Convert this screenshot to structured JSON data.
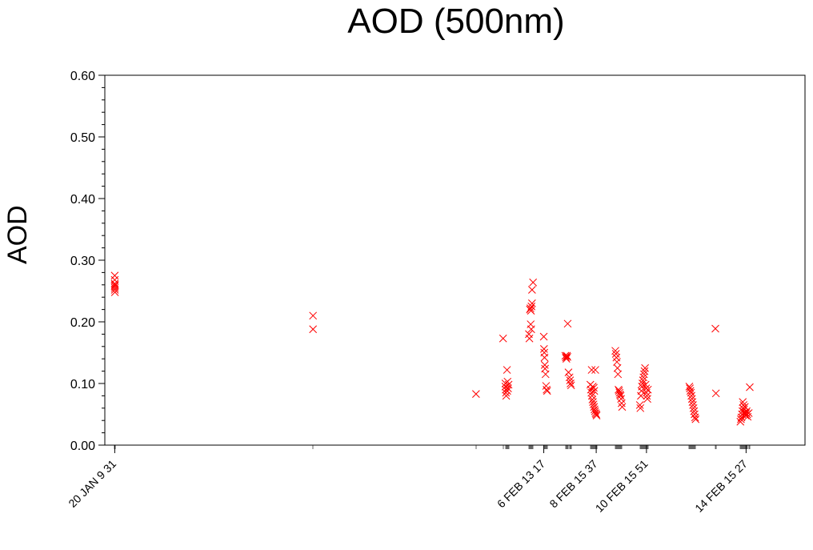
{
  "chart_data": {
    "type": "scatter",
    "title": "AOD (500nm)",
    "xlabel": "",
    "ylabel": "AOD",
    "ylim": [
      0,
      0.6
    ],
    "xlim_days": [
      "2020-01-20",
      "2020-02-17"
    ],
    "y_ticks": [
      "0.00",
      "0.10",
      "0.20",
      "0.30",
      "0.40",
      "0.50",
      "0.60"
    ],
    "x_ticks": [
      {
        "time": "01-20 09:31",
        "label": "20 JAN 9 31"
      },
      {
        "time": "02-06 13:17",
        "label": "6 FEB 13 17"
      },
      {
        "time": "02-08 15:37",
        "label": "8 FEB 15 37"
      },
      {
        "time": "02-10 15:51",
        "label": "10 FEB 15 51"
      },
      {
        "time": "02-14 15:27",
        "label": "14 FEB 15 27"
      }
    ],
    "marker": "x",
    "marker_color": "#ff0000",
    "series": [
      {
        "points": [
          [
            "01-20 09:31",
            0.275
          ],
          [
            "01-20 09:31",
            0.268
          ],
          [
            "01-20 09:31",
            0.262
          ],
          [
            "01-20 09:31",
            0.258
          ],
          [
            "01-20 09:35",
            0.255
          ],
          [
            "01-20 09:38",
            0.252
          ],
          [
            "01-20 09:42",
            0.248
          ],
          [
            "01-20 09:45",
            0.26
          ],
          [
            "01-28 07:49",
            0.21
          ],
          [
            "01-28 07:49",
            0.188
          ],
          [
            "02-03 20:15",
            0.083
          ],
          [
            "02-04 22:15",
            0.173
          ],
          [
            "02-05 00:30",
            0.1
          ],
          [
            "02-05 00:30",
            0.095
          ],
          [
            "02-05 00:45",
            0.09
          ],
          [
            "02-05 01:00",
            0.085
          ],
          [
            "02-05 01:15",
            0.08
          ],
          [
            "02-05 02:00",
            0.122
          ],
          [
            "02-05 02:30",
            0.103
          ],
          [
            "02-05 03:00",
            0.092
          ],
          [
            "02-05 03:30",
            0.098
          ],
          [
            "02-05 02:15",
            0.088
          ],
          [
            "02-06 00:00",
            0.22
          ],
          [
            "02-06 00:30",
            0.222
          ],
          [
            "02-06 01:00",
            0.218
          ],
          [
            "02-06 01:30",
            0.225
          ],
          [
            "02-06 02:00",
            0.252
          ],
          [
            "02-06 03:00",
            0.264
          ],
          [
            "02-06 02:00",
            0.23
          ],
          [
            "02-06 00:45",
            0.196
          ],
          [
            "02-06 01:15",
            0.188
          ],
          [
            "02-05 23:00",
            0.18
          ],
          [
            "02-05 23:30",
            0.173
          ],
          [
            "02-06 13:17",
            0.176
          ],
          [
            "02-06 13:30",
            0.156
          ],
          [
            "02-06 13:45",
            0.15
          ],
          [
            "02-06 14:00",
            0.142
          ],
          [
            "02-06 14:15",
            0.13
          ],
          [
            "02-06 14:30",
            0.124
          ],
          [
            "02-06 15:00",
            0.115
          ],
          [
            "02-06 15:30",
            0.096
          ],
          [
            "02-06 16:00",
            0.09
          ],
          [
            "02-06 16:30",
            0.088
          ],
          [
            "02-07 10:00",
            0.145
          ],
          [
            "02-07 10:30",
            0.142
          ],
          [
            "02-07 11:00",
            0.14
          ],
          [
            "02-07 11:30",
            0.145
          ],
          [
            "02-07 12:00",
            0.143
          ],
          [
            "02-07 12:15",
            0.197
          ],
          [
            "02-07 13:00",
            0.118
          ],
          [
            "02-07 14:00",
            0.11
          ],
          [
            "02-07 15:00",
            0.1
          ],
          [
            "02-07 15:30",
            0.097
          ],
          [
            "02-07 14:30",
            0.105
          ],
          [
            "02-08 10:00",
            0.098
          ],
          [
            "02-08 10:30",
            0.09
          ],
          [
            "02-08 11:00",
            0.085
          ],
          [
            "02-08 11:30",
            0.08
          ],
          [
            "02-08 12:00",
            0.074
          ],
          [
            "02-08 12:30",
            0.07
          ],
          [
            "02-08 13:00",
            0.066
          ],
          [
            "02-08 13:30",
            0.062
          ],
          [
            "02-08 14:00",
            0.058
          ],
          [
            "02-08 14:30",
            0.055
          ],
          [
            "02-08 15:00",
            0.052
          ],
          [
            "02-08 15:37",
            0.05
          ],
          [
            "02-08 16:00",
            0.048
          ],
          [
            "02-08 11:15",
            0.122
          ],
          [
            "02-08 14:45",
            0.122
          ],
          [
            "02-08 12:15",
            0.095
          ],
          [
            "02-08 13:15",
            0.093
          ],
          [
            "02-08 13:45",
            0.088
          ],
          [
            "02-09 10:00",
            0.153
          ],
          [
            "02-09 10:30",
            0.148
          ],
          [
            "02-09 11:00",
            0.142
          ],
          [
            "02-09 11:30",
            0.135
          ],
          [
            "02-09 12:00",
            0.125
          ],
          [
            "02-09 12:30",
            0.115
          ],
          [
            "02-09 13:00",
            0.09
          ],
          [
            "02-09 13:30",
            0.088
          ],
          [
            "02-09 14:00",
            0.085
          ],
          [
            "02-09 14:30",
            0.082
          ],
          [
            "02-09 15:00",
            0.08
          ],
          [
            "02-09 15:30",
            0.075
          ],
          [
            "02-09 16:00",
            0.068
          ],
          [
            "02-09 16:30",
            0.062
          ],
          [
            "02-10 09:30",
            0.065
          ],
          [
            "02-10 10:00",
            0.06
          ],
          [
            "02-10 10:30",
            0.08
          ],
          [
            "02-10 11:00",
            0.088
          ],
          [
            "02-10 11:30",
            0.095
          ],
          [
            "02-10 12:00",
            0.1
          ],
          [
            "02-10 12:30",
            0.105
          ],
          [
            "02-10 13:00",
            0.11
          ],
          [
            "02-10 13:30",
            0.115
          ],
          [
            "02-10 14:00",
            0.12
          ],
          [
            "02-10 14:30",
            0.125
          ],
          [
            "02-10 15:00",
            0.098
          ],
          [
            "02-10 15:30",
            0.092
          ],
          [
            "02-10 15:51",
            0.085
          ],
          [
            "02-10 16:15",
            0.08
          ],
          [
            "02-10 16:45",
            0.075
          ],
          [
            "02-10 17:15",
            0.09
          ],
          [
            "02-12 09:00",
            0.095
          ],
          [
            "02-12 09:30",
            0.092
          ],
          [
            "02-12 10:00",
            0.088
          ],
          [
            "02-12 10:30",
            0.085
          ],
          [
            "02-12 11:00",
            0.08
          ],
          [
            "02-12 11:30",
            0.075
          ],
          [
            "02-12 12:00",
            0.07
          ],
          [
            "02-12 12:30",
            0.065
          ],
          [
            "02-12 13:00",
            0.06
          ],
          [
            "02-12 13:30",
            0.055
          ],
          [
            "02-12 14:00",
            0.05
          ],
          [
            "02-12 14:30",
            0.045
          ],
          [
            "02-12 15:00",
            0.042
          ],
          [
            "02-13 10:00",
            0.189
          ],
          [
            "02-13 10:30",
            0.084
          ],
          [
            "02-14 10:00",
            0.038
          ],
          [
            "02-14 10:30",
            0.042
          ],
          [
            "02-14 11:00",
            0.045
          ],
          [
            "02-14 11:30",
            0.05
          ],
          [
            "02-14 12:00",
            0.055
          ],
          [
            "02-14 12:30",
            0.06
          ],
          [
            "02-14 13:00",
            0.065
          ],
          [
            "02-14 13:30",
            0.058
          ],
          [
            "02-14 14:00",
            0.053
          ],
          [
            "02-14 14:30",
            0.05
          ],
          [
            "02-14 15:00",
            0.048
          ],
          [
            "02-14 15:27",
            0.052
          ],
          [
            "02-14 16:00",
            0.055
          ],
          [
            "02-14 16:30",
            0.05
          ],
          [
            "02-14 17:00",
            0.046
          ],
          [
            "02-14 18:00",
            0.052
          ],
          [
            "02-14 19:00",
            0.094
          ],
          [
            "02-14 12:15",
            0.07
          ],
          [
            "02-14 14:15",
            0.062
          ]
        ]
      }
    ]
  }
}
